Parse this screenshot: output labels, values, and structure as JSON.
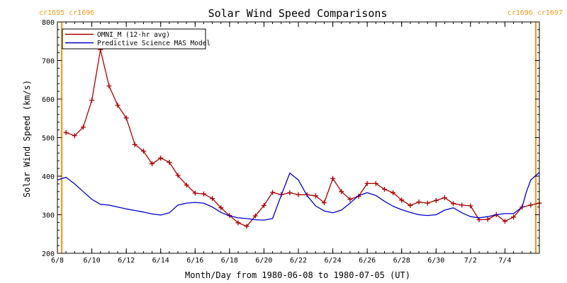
{
  "chart_data": {
    "type": "line",
    "title": "Solar Wind Speed Comparisons",
    "xlabel": "Month/Day from 1980-06-08 to 1980-07-05 (UT)",
    "ylabel": "Solar Wind Speed (km/s)",
    "ylim": [
      200,
      800
    ],
    "xlim": [
      "1980-06-08 00:00",
      "1980-07-06 00:00"
    ],
    "yticks": [
      "200",
      "300",
      "400",
      "500",
      "600",
      "700",
      "800"
    ],
    "xticks": [
      {
        "label": "6/8",
        "date": "1980-06-08 00:00"
      },
      {
        "label": "6/10",
        "date": "1980-06-10 00:00"
      },
      {
        "label": "6/12",
        "date": "1980-06-12 00:00"
      },
      {
        "label": "6/14",
        "date": "1980-06-14 00:00"
      },
      {
        "label": "6/16",
        "date": "1980-06-16 00:00"
      },
      {
        "label": "6/18",
        "date": "1980-06-18 00:00"
      },
      {
        "label": "6/20",
        "date": "1980-06-20 00:00"
      },
      {
        "label": "6/22",
        "date": "1980-06-22 00:00"
      },
      {
        "label": "6/24",
        "date": "1980-06-24 00:00"
      },
      {
        "label": "6/26",
        "date": "1980-06-26 00:00"
      },
      {
        "label": "6/28",
        "date": "1980-06-28 00:00"
      },
      {
        "label": "6/30",
        "date": "1980-06-30 00:00"
      },
      {
        "label": "7/2",
        "date": "1980-07-02 00:00"
      },
      {
        "label": "7/4",
        "date": "1980-07-04 00:00"
      }
    ],
    "grid": false,
    "legend": "top-left",
    "carrington_markers": [
      {
        "date": "1980-06-08 06:00",
        "label": "cr1695 cr1696",
        "label_side": "left"
      },
      {
        "date": "1980-07-05 19:00",
        "label": "cr1696 cr1697",
        "label_side": "right"
      }
    ],
    "series": [
      {
        "name": "OMNI_M (12-hr avg)",
        "color": "#aa0000",
        "marker": "plus",
        "x": [
          "1980-06-08 12:00",
          "1980-06-09 00:00",
          "1980-06-09 12:00",
          "1980-06-10 00:00",
          "1980-06-10 12:00",
          "1980-06-11 00:00",
          "1980-06-11 12:00",
          "1980-06-12 00:00",
          "1980-06-12 12:00",
          "1980-06-13 00:00",
          "1980-06-13 12:00",
          "1980-06-14 00:00",
          "1980-06-14 12:00",
          "1980-06-15 00:00",
          "1980-06-15 12:00",
          "1980-06-16 00:00",
          "1980-06-16 12:00",
          "1980-06-17 00:00",
          "1980-06-17 12:00",
          "1980-06-18 00:00",
          "1980-06-18 12:00",
          "1980-06-19 00:00",
          "1980-06-19 12:00",
          "1980-06-20 00:00",
          "1980-06-20 12:00",
          "1980-06-21 00:00",
          "1980-06-21 12:00",
          "1980-06-22 00:00",
          "1980-06-22 12:00",
          "1980-06-23 00:00",
          "1980-06-23 12:00",
          "1980-06-24 00:00",
          "1980-06-24 12:00",
          "1980-06-25 00:00",
          "1980-06-25 12:00",
          "1980-06-26 00:00",
          "1980-06-26 12:00",
          "1980-06-27 00:00",
          "1980-06-27 12:00",
          "1980-06-28 00:00",
          "1980-06-28 12:00",
          "1980-06-29 00:00",
          "1980-06-29 12:00",
          "1980-06-30 00:00",
          "1980-06-30 12:00",
          "1980-07-01 00:00",
          "1980-07-01 12:00",
          "1980-07-02 00:00",
          "1980-07-02 12:00",
          "1980-07-03 00:00",
          "1980-07-03 12:00",
          "1980-07-04 00:00",
          "1980-07-04 12:00",
          "1980-07-05 00:00",
          "1980-07-05 12:00",
          "1980-07-06 00:00"
        ],
        "values": [
          513,
          505,
          527,
          597,
          728,
          634,
          584,
          551,
          482,
          465,
          432,
          447,
          436,
          402,
          377,
          356,
          354,
          342,
          318,
          298,
          279,
          270,
          297,
          324,
          358,
          352,
          357,
          352,
          352,
          349,
          331,
          394,
          360,
          340,
          348,
          381,
          381,
          366,
          357,
          338,
          324,
          333,
          330,
          337,
          344,
          329,
          325,
          323,
          287,
          288,
          300,
          283,
          294,
          320,
          325,
          330
        ]
      },
      {
        "name": "Predictive Science MAS Model",
        "color": "#0000cc",
        "marker": "none",
        "x": [
          "1980-06-08 00:00",
          "1980-06-08 12:00",
          "1980-06-09 00:00",
          "1980-06-09 12:00",
          "1980-06-10 00:00",
          "1980-06-10 12:00",
          "1980-06-11 00:00",
          "1980-06-11 12:00",
          "1980-06-12 00:00",
          "1980-06-12 12:00",
          "1980-06-13 00:00",
          "1980-06-13 12:00",
          "1980-06-14 00:00",
          "1980-06-14 12:00",
          "1980-06-15 00:00",
          "1980-06-15 12:00",
          "1980-06-16 00:00",
          "1980-06-16 12:00",
          "1980-06-17 00:00",
          "1980-06-17 12:00",
          "1980-06-18 00:00",
          "1980-06-18 12:00",
          "1980-06-19 00:00",
          "1980-06-19 12:00",
          "1980-06-20 00:00",
          "1980-06-20 12:00",
          "1980-06-21 00:00",
          "1980-06-21 12:00",
          "1980-06-22 00:00",
          "1980-06-22 12:00",
          "1980-06-23 00:00",
          "1980-06-23 12:00",
          "1980-06-24 00:00",
          "1980-06-24 12:00",
          "1980-06-25 00:00",
          "1980-06-25 12:00",
          "1980-06-26 00:00",
          "1980-06-26 12:00",
          "1980-06-27 00:00",
          "1980-06-27 12:00",
          "1980-06-28 00:00",
          "1980-06-28 12:00",
          "1980-06-29 00:00",
          "1980-06-29 12:00",
          "1980-06-30 00:00",
          "1980-06-30 12:00",
          "1980-07-01 00:00",
          "1980-07-01 12:00",
          "1980-07-02 00:00",
          "1980-07-02 12:00",
          "1980-07-03 00:00",
          "1980-07-03 12:00",
          "1980-07-04 00:00",
          "1980-07-04 12:00",
          "1980-07-05 00:00",
          "1980-07-05 06:00",
          "1980-07-05 12:00",
          "1980-07-06 00:00"
        ],
        "values": [
          390,
          397,
          380,
          360,
          340,
          327,
          325,
          320,
          315,
          311,
          307,
          302,
          299,
          305,
          325,
          330,
          332,
          330,
          320,
          306,
          297,
          292,
          290,
          287,
          286,
          290,
          350,
          408,
          390,
          350,
          323,
          310,
          305,
          312,
          330,
          350,
          357,
          350,
          335,
          322,
          313,
          306,
          300,
          298,
          300,
          312,
          318,
          305,
          295,
          292,
          295,
          300,
          303,
          303,
          320,
          360,
          390,
          410
        ]
      }
    ]
  }
}
